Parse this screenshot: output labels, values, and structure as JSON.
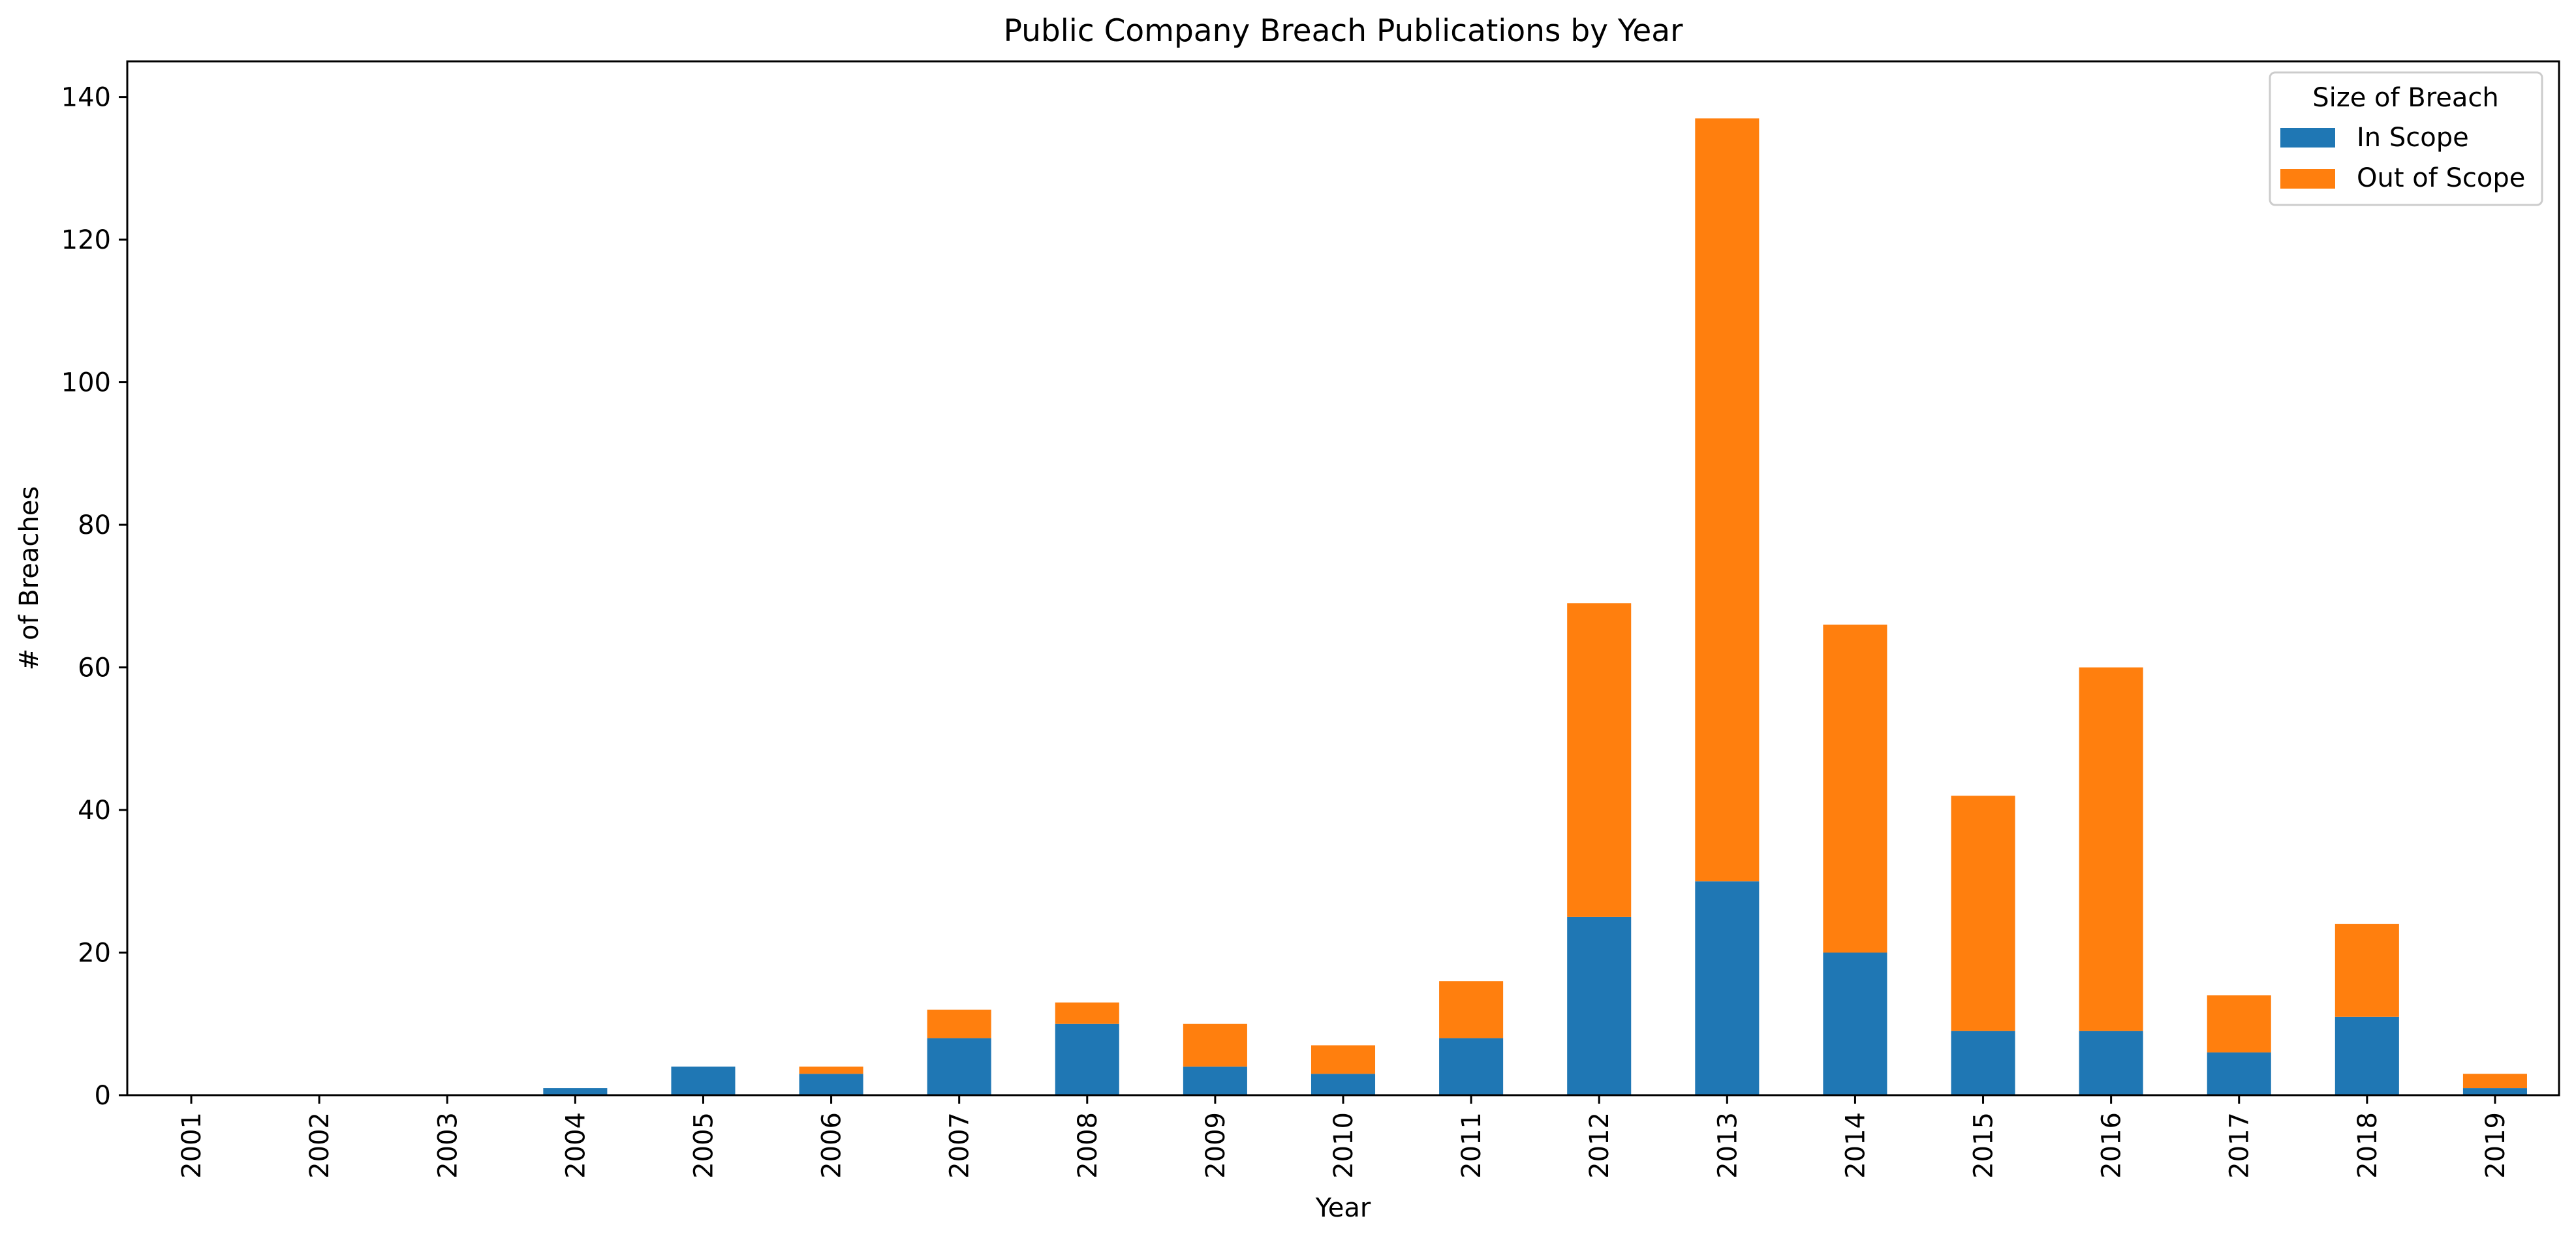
{
  "chart_data": {
    "type": "bar",
    "stacked": true,
    "title": "Public Company Breach Publications by Year",
    "xlabel": "Year",
    "ylabel": "# of Breaches",
    "categories": [
      "2001",
      "2002",
      "2003",
      "2004",
      "2005",
      "2006",
      "2007",
      "2008",
      "2009",
      "2010",
      "2011",
      "2012",
      "2013",
      "2014",
      "2015",
      "2016",
      "2017",
      "2018",
      "2019"
    ],
    "series": [
      {
        "name": "In Scope",
        "color": "#1f77b4",
        "values": [
          0,
          0,
          0,
          1,
          4,
          3,
          8,
          10,
          4,
          3,
          8,
          25,
          30,
          20,
          9,
          9,
          6,
          11,
          1
        ]
      },
      {
        "name": "Out of Scope",
        "color": "#ff7f0e",
        "values": [
          0,
          0,
          0,
          0,
          0,
          1,
          4,
          3,
          6,
          4,
          8,
          44,
          107,
          46,
          33,
          51,
          8,
          13,
          2
        ]
      }
    ],
    "ylim": [
      0,
      145
    ],
    "yticks": [
      0,
      20,
      40,
      60,
      80,
      100,
      120,
      140
    ],
    "xtick_rotation": "vertical",
    "grid": false,
    "legend": {
      "title": "Size of Breach",
      "placement": "top-right"
    }
  }
}
